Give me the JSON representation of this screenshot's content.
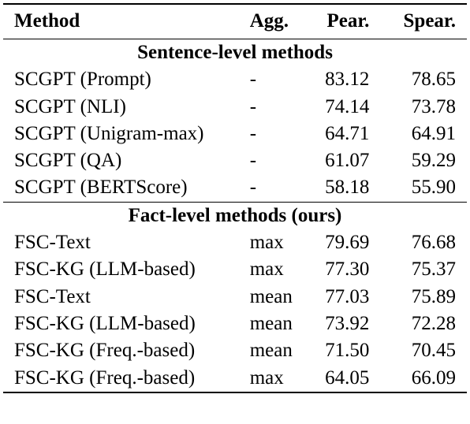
{
  "header": {
    "method": "Method",
    "agg": "Agg.",
    "pear": "Pear.",
    "spear": "Spear."
  },
  "sections": [
    {
      "title": "Sentence-level methods",
      "rows": [
        {
          "method": "SCGPT (Prompt)",
          "agg": "-",
          "pear": "83.12",
          "spear": "78.65"
        },
        {
          "method": "SCGPT (NLI)",
          "agg": "-",
          "pear": "74.14",
          "spear": "73.78"
        },
        {
          "method": "SCGPT (Unigram-max)",
          "agg": "-",
          "pear": "64.71",
          "spear": "64.91"
        },
        {
          "method": "SCGPT (QA)",
          "agg": "-",
          "pear": "61.07",
          "spear": "59.29"
        },
        {
          "method": "SCGPT (BERTScore)",
          "agg": "-",
          "pear": "58.18",
          "spear": "55.90"
        }
      ]
    },
    {
      "title": "Fact-level methods (ours)",
      "rows": [
        {
          "method": "FSC-Text",
          "agg": "max",
          "pear": "79.69",
          "spear": "76.68"
        },
        {
          "method": "FSC-KG (LLM-based)",
          "agg": "max",
          "pear": "77.30",
          "spear": "75.37"
        },
        {
          "method": "FSC-Text",
          "agg": "mean",
          "pear": "77.03",
          "spear": "75.89"
        },
        {
          "method": "FSC-KG (LLM-based)",
          "agg": "mean",
          "pear": "73.92",
          "spear": "72.28"
        },
        {
          "method": "FSC-KG (Freq.-based)",
          "agg": "mean",
          "pear": "71.50",
          "spear": "70.45"
        },
        {
          "method": "FSC-KG (Freq.-based)",
          "agg": "max",
          "pear": "64.05",
          "spear": "66.09"
        }
      ]
    }
  ]
}
